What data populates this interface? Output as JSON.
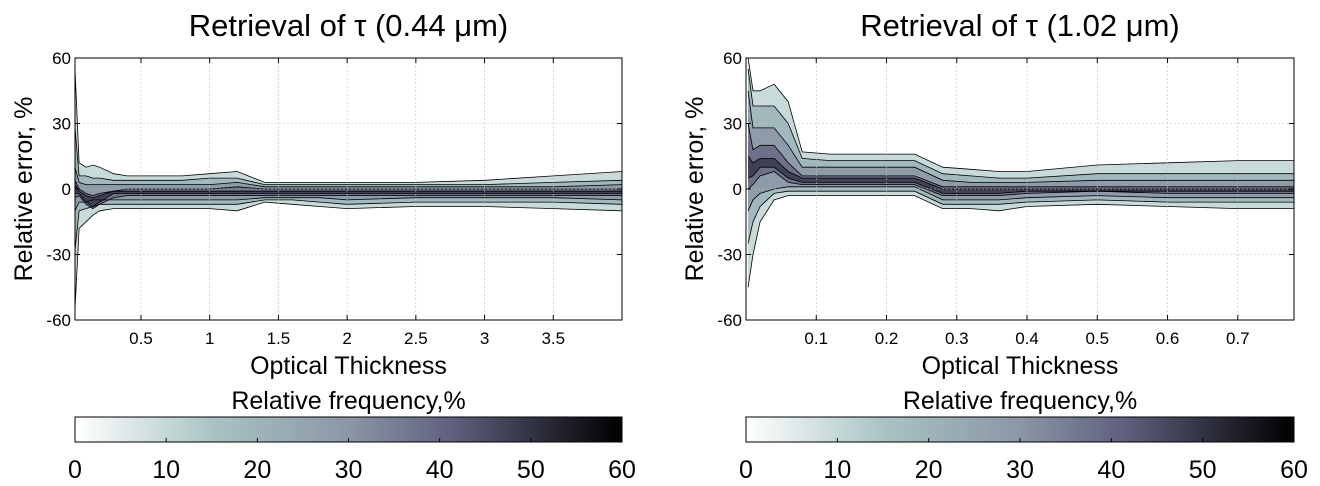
{
  "colorbar_scale": [
    "#ffffff",
    "#a9c4c4",
    "#8b96a6",
    "#5c5d7a",
    "#000000"
  ],
  "chart_data": [
    {
      "type": "heatmap",
      "title": "Retrieval of τ (0.44 μm)",
      "xlabel": "Optical Thickness",
      "ylabel": "Relative error, %",
      "xlim": [
        0.02,
        4.0
      ],
      "ylim": [
        -60,
        60
      ],
      "xticks": [
        0.5,
        1,
        1.5,
        2,
        2.5,
        3,
        3.5
      ],
      "xtick_labels": [
        "0.5",
        "1",
        "1.5",
        "2",
        "2.5",
        "3",
        "3.5"
      ],
      "yticks": [
        60,
        30,
        0,
        -30,
        -60
      ],
      "ytick_labels": [
        "60",
        "30",
        "0",
        "-30",
        "-60"
      ],
      "grid": true,
      "colorbar": {
        "label": "Relative frequency,%",
        "range": [
          0,
          60
        ],
        "ticks": [
          0,
          10,
          20,
          30,
          40,
          50,
          60
        ],
        "tick_labels": [
          "0",
          "10",
          "20",
          "30",
          "40",
          "50",
          "60"
        ]
      },
      "x": [
        0.02,
        0.05,
        0.1,
        0.15,
        0.2,
        0.3,
        0.4,
        0.6,
        0.8,
        1.0,
        1.2,
        1.4,
        1.6,
        1.8,
        2.0,
        2.5,
        3.0,
        3.5,
        4.0
      ],
      "contours": [
        {
          "level": 10,
          "upper": [
            55,
            12,
            10,
            11,
            10,
            7,
            6,
            6,
            6,
            7,
            8,
            3,
            3,
            3,
            3,
            3,
            4,
            6,
            8
          ],
          "lower": [
            -55,
            -18,
            -15,
            -12,
            -10,
            -9,
            -9,
            -9,
            -9,
            -9,
            -10,
            -6,
            -7,
            -8,
            -9,
            -8,
            -8,
            -9,
            -10
          ]
        },
        {
          "level": 20,
          "upper": [
            28,
            6,
            6,
            5,
            5,
            4,
            4,
            4,
            4,
            5,
            5,
            2,
            2,
            2,
            2,
            2,
            2,
            3,
            4
          ],
          "lower": [
            -28,
            -10,
            -9,
            -8,
            -7,
            -7,
            -7,
            -7,
            -7,
            -7,
            -7,
            -5,
            -5,
            -6,
            -7,
            -6,
            -6,
            -6,
            -7
          ]
        },
        {
          "level": 30,
          "upper": [
            10,
            3,
            2,
            2,
            2,
            2,
            2,
            2,
            2,
            2,
            3,
            1,
            1,
            1,
            1,
            1,
            1,
            1,
            2
          ],
          "lower": [
            -10,
            -6,
            -6,
            -5,
            -5,
            -5,
            -5,
            -5,
            -5,
            -5,
            -5,
            -4,
            -4,
            -4,
            -5,
            -4,
            -4,
            -4,
            -5
          ]
        },
        {
          "level": 40,
          "upper": [
            4,
            0,
            -2,
            -3,
            -2,
            -1,
            0,
            0,
            0,
            0,
            1,
            0,
            0,
            0,
            0,
            0,
            0,
            0,
            0
          ],
          "lower": [
            -4,
            -3,
            -7,
            -9,
            -7,
            -4,
            -3,
            -3,
            -3,
            -3,
            -3,
            -3,
            -3,
            -3,
            -3,
            -3,
            -3,
            -3,
            -3
          ]
        },
        {
          "level": 50,
          "upper": [
            2,
            -1,
            -3,
            -4,
            -3,
            -1,
            -1,
            -1,
            -1,
            -1,
            -1,
            -1,
            -1,
            -1,
            -1,
            -1,
            -1,
            -1,
            -1
          ],
          "lower": [
            -2,
            -2,
            -6,
            -8,
            -6,
            -2,
            -2,
            -2,
            -2,
            -2,
            -2,
            -2,
            -2,
            -2,
            -2,
            -2,
            -2,
            -2,
            -2
          ]
        }
      ]
    },
    {
      "type": "heatmap",
      "title": "Retrieval of τ (1.02 μm)",
      "xlabel": "Optical Thickness",
      "ylabel": "Relative error, %",
      "xlim": [
        0.0,
        0.78
      ],
      "ylim": [
        -60,
        60
      ],
      "xticks": [
        0.1,
        0.2,
        0.3,
        0.4,
        0.5,
        0.6,
        0.7
      ],
      "xtick_labels": [
        "0.1",
        "0.2",
        "0.3",
        "0.4",
        "0.5",
        "0.6",
        "0.7"
      ],
      "yticks": [
        60,
        30,
        0,
        -30,
        -60
      ],
      "ytick_labels": [
        "60",
        "30",
        "0",
        "-30",
        "-60"
      ],
      "grid": true,
      "colorbar": {
        "label": "Relative frequency,%",
        "range": [
          0,
          60
        ],
        "ticks": [
          0,
          10,
          20,
          30,
          40,
          50,
          60
        ],
        "tick_labels": [
          "0",
          "10",
          "20",
          "30",
          "40",
          "50",
          "60"
        ]
      },
      "x": [
        0.003,
        0.01,
        0.02,
        0.04,
        0.06,
        0.08,
        0.12,
        0.16,
        0.2,
        0.24,
        0.28,
        0.32,
        0.36,
        0.4,
        0.5,
        0.6,
        0.7,
        0.78
      ],
      "contours": [
        {
          "level": 10,
          "upper": [
            60,
            45,
            45,
            48,
            40,
            17,
            16,
            16,
            16,
            16,
            10,
            9,
            8,
            8,
            11,
            12,
            13,
            13
          ],
          "lower": [
            -45,
            -30,
            -15,
            -5,
            -3,
            -3,
            -3,
            -3,
            -3,
            -3,
            -9,
            -9,
            -10,
            -8,
            -7,
            -8,
            -9,
            -9
          ]
        },
        {
          "level": 20,
          "upper": [
            55,
            38,
            38,
            38,
            30,
            14,
            13,
            13,
            13,
            13,
            7,
            6,
            5,
            5,
            7,
            7,
            7,
            7
          ],
          "lower": [
            -25,
            -15,
            -8,
            -2,
            -1,
            -1,
            -1,
            -1,
            -1,
            -1,
            -7,
            -7,
            -7,
            -6,
            -5,
            -6,
            -6,
            -6
          ]
        },
        {
          "level": 30,
          "upper": [
            45,
            28,
            28,
            28,
            20,
            10,
            10,
            10,
            10,
            10,
            4,
            3,
            3,
            3,
            4,
            4,
            4,
            4
          ],
          "lower": [
            -10,
            -5,
            -2,
            0,
            1,
            1,
            1,
            1,
            1,
            1,
            -5,
            -5,
            -5,
            -4,
            -3,
            -4,
            -4,
            -4
          ]
        },
        {
          "level": 40,
          "upper": [
            30,
            18,
            20,
            20,
            12,
            6,
            6,
            6,
            6,
            6,
            1,
            1,
            1,
            1,
            1,
            1,
            1,
            1
          ],
          "lower": [
            0,
            2,
            6,
            8,
            3,
            2,
            2,
            2,
            2,
            2,
            -3,
            -3,
            -3,
            -2,
            -1,
            -2,
            -2,
            -2
          ]
        },
        {
          "level": 50,
          "upper": [
            15,
            12,
            14,
            14,
            8,
            5,
            5,
            5,
            5,
            5,
            0,
            0,
            0,
            0,
            0,
            0,
            0,
            0
          ],
          "lower": [
            5,
            6,
            10,
            10,
            5,
            3,
            3,
            3,
            3,
            3,
            -2,
            -2,
            -2,
            -1,
            -1,
            -1,
            -1,
            -1
          ]
        }
      ]
    }
  ]
}
